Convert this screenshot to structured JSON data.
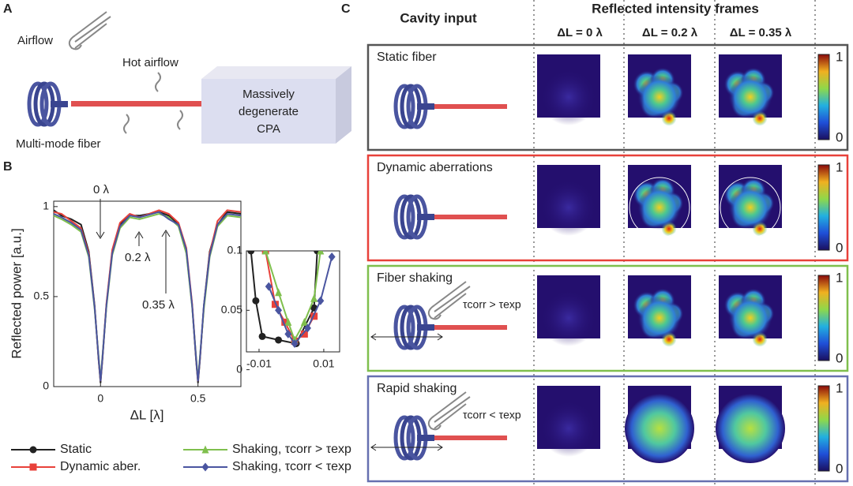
{
  "panels": {
    "a": "A",
    "b": "B",
    "c": "C"
  },
  "panel_a": {
    "airflow": "Airflow",
    "hot_airflow": "Hot airflow",
    "cpa": [
      "Massively",
      "degenerate",
      "CPA"
    ],
    "fiber": "Multi-mode fiber"
  },
  "chart_data": [
    {
      "type": "line",
      "ylabel": "Reflected power [a.u.]",
      "xlabel": "ΔL [λ]",
      "x": [
        -0.24,
        -0.2,
        -0.15,
        -0.1,
        -0.06,
        -0.03,
        -0.01,
        0,
        0.01,
        0.03,
        0.06,
        0.1,
        0.15,
        0.2,
        0.3,
        0.35,
        0.4,
        0.44,
        0.47,
        0.49,
        0.5,
        0.51,
        0.53,
        0.56,
        0.6,
        0.65,
        0.72
      ],
      "series": [
        {
          "name": "Static",
          "color": "#222222",
          "values": [
            0.98,
            0.95,
            0.93,
            0.9,
            0.75,
            0.45,
            0.15,
            0.02,
            0.15,
            0.45,
            0.75,
            0.9,
            0.95,
            0.95,
            0.97,
            0.95,
            0.9,
            0.75,
            0.45,
            0.15,
            0.02,
            0.15,
            0.45,
            0.75,
            0.9,
            0.97,
            0.96
          ]
        },
        {
          "name": "Dynamic aber.",
          "color": "#e8413a",
          "values": [
            0.97,
            0.96,
            0.92,
            0.88,
            0.74,
            0.44,
            0.16,
            0.03,
            0.16,
            0.46,
            0.76,
            0.91,
            0.96,
            0.94,
            0.98,
            0.96,
            0.91,
            0.77,
            0.46,
            0.16,
            0.03,
            0.16,
            0.44,
            0.74,
            0.92,
            0.98,
            0.97
          ]
        },
        {
          "name": "Shaking, τcorr > τexp",
          "color": "#7fbf4d",
          "values": [
            0.95,
            0.93,
            0.9,
            0.86,
            0.72,
            0.43,
            0.17,
            0.04,
            0.17,
            0.44,
            0.73,
            0.88,
            0.94,
            0.93,
            0.96,
            0.94,
            0.89,
            0.74,
            0.44,
            0.17,
            0.04,
            0.17,
            0.43,
            0.72,
            0.89,
            0.95,
            0.94
          ]
        },
        {
          "name": "Shaking, τcorr < τexp",
          "color": "#4a55a0",
          "values": [
            0.96,
            0.94,
            0.91,
            0.87,
            0.73,
            0.44,
            0.16,
            0.03,
            0.16,
            0.45,
            0.74,
            0.89,
            0.95,
            0.94,
            0.97,
            0.93,
            0.9,
            0.76,
            0.45,
            0.16,
            0.03,
            0.16,
            0.45,
            0.73,
            0.9,
            0.96,
            0.95
          ]
        }
      ],
      "xlim": [
        -0.24,
        0.72
      ],
      "ylim": [
        0,
        1.03
      ],
      "xticks": [
        0,
        0.5
      ],
      "yticks": [
        0,
        0.5,
        1
      ],
      "annotations": [
        "0 λ",
        "0.2 λ",
        "0.35 λ"
      ]
    },
    {
      "type": "scatter",
      "series": [
        {
          "name": "Static",
          "color": "#222222",
          "marker": "circle",
          "x": [
            -0.0125,
            -0.011,
            -0.009,
            -0.004,
            0.0015,
            0.007,
            0.008
          ],
          "values": [
            0.1,
            0.058,
            0.028,
            0.025,
            0.022,
            0.052,
            0.1
          ]
        },
        {
          "name": "Dynamic aber.",
          "color": "#e8413a",
          "marker": "square",
          "x": [
            -0.008,
            -0.005,
            -0.002,
            0.001,
            0.004,
            0.007
          ],
          "values": [
            0.1,
            0.055,
            0.04,
            0.024,
            0.03,
            0.045
          ]
        },
        {
          "name": "Shaking, τcorr > τexp",
          "color": "#7fbf4d",
          "marker": "triangle",
          "x": [
            -0.008,
            -0.004,
            -0.001,
            0.001,
            0.004,
            0.007,
            0.009
          ],
          "values": [
            0.1,
            0.065,
            0.04,
            0.025,
            0.04,
            0.06,
            0.1
          ]
        },
        {
          "name": "Shaking, τcorr < τexp",
          "color": "#4a55a0",
          "marker": "diamond",
          "x": [
            -0.007,
            -0.004,
            -0.001,
            0.001,
            0.005,
            0.009,
            0.0125
          ],
          "values": [
            0.07,
            0.05,
            0.03,
            0.022,
            0.035,
            0.058,
            0.095
          ]
        }
      ],
      "xlim": [
        -0.0139,
        0.0149
      ],
      "ylim": [
        0.015,
        0.1
      ],
      "xticks": [
        -0.01,
        0.01
      ],
      "yticks": [
        0,
        0.05,
        0.1
      ]
    }
  ],
  "panel_c": {
    "cavity_input": "Cavity input",
    "frames_title": "Reflected intensity frames",
    "columns": [
      "ΔL = 0 λ",
      "ΔL = 0.2 λ",
      "ΔL = 0.35 λ"
    ],
    "rows": [
      {
        "label": "Static fiber",
        "color": "#555555"
      },
      {
        "label": "Dynamic aberrations",
        "color": "#e8413a"
      },
      {
        "label": "Fiber shaking",
        "color": "#7fbf4d",
        "note": "τcorr > τexp"
      },
      {
        "label": "Rapid shaking",
        "color": "#6670b0",
        "note": "τcorr < τexp"
      }
    ],
    "colorbar": [
      "1",
      "0"
    ]
  }
}
